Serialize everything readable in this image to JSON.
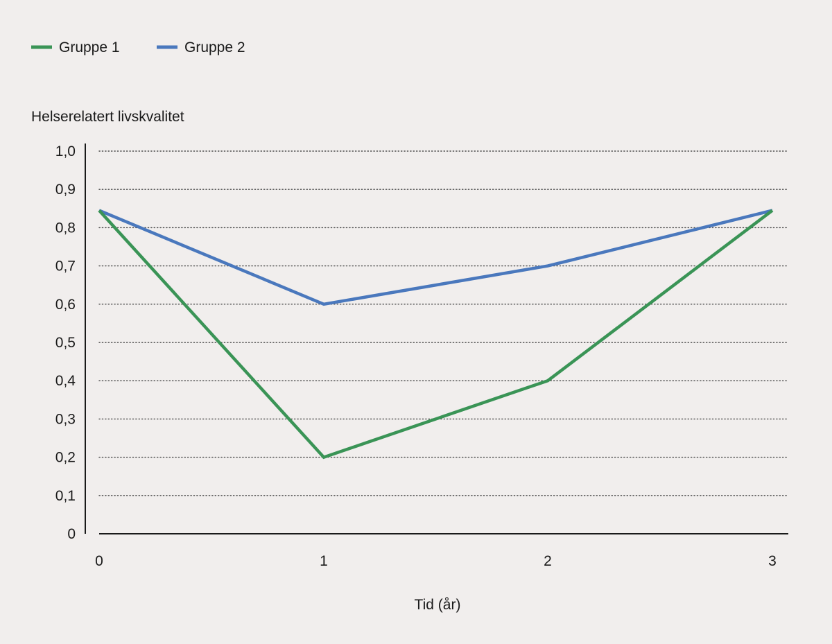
{
  "chart_data": {
    "type": "line",
    "x": [
      0,
      1,
      2,
      3
    ],
    "x_tick_labels": [
      "0",
      "1",
      "2",
      "3"
    ],
    "xlabel": "Tid (år)",
    "ylabel": "Helserelatert livskvalitet",
    "ylim": [
      0,
      1.0
    ],
    "y_ticks": [
      0,
      0.1,
      0.2,
      0.3,
      0.4,
      0.5,
      0.6,
      0.7,
      0.8,
      0.9,
      1.0
    ],
    "y_tick_labels": [
      "0",
      "0,1",
      "0,2",
      "0,3",
      "0,4",
      "0,5",
      "0,6",
      "0,7",
      "0,8",
      "0,9",
      "1,0"
    ],
    "grid": "horizontal dotted",
    "legend_position": "top-left",
    "series": [
      {
        "name": "Gruppe 1",
        "color": "#3a9456",
        "values": [
          0.845,
          0.2,
          0.4,
          0.845
        ]
      },
      {
        "name": "Gruppe 2",
        "color": "#4a78bd",
        "values": [
          0.845,
          0.6,
          0.7,
          0.845
        ]
      }
    ]
  }
}
